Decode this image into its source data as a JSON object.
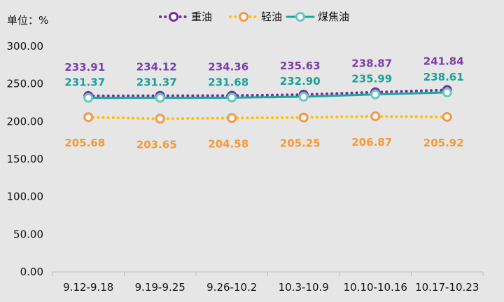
{
  "chart_data": {
    "type": "line",
    "unit_label": "单位：%",
    "categories": [
      "9.12-9.18",
      "9.19-9.25",
      "9.26-10.2",
      "10.3-10.9",
      "10.10-10.16",
      "10.17-10.23"
    ],
    "ylim": [
      0,
      300
    ],
    "yticks": [
      "0.00",
      "50.00",
      "100.00",
      "150.00",
      "200.00",
      "250.00",
      "300.00"
    ],
    "grid": false,
    "legend_position": "top",
    "series": [
      {
        "name": "重油",
        "values": [
          233.91,
          234.12,
          234.36,
          235.63,
          238.87,
          241.84
        ],
        "labels": [
          "233.91",
          "234.12",
          "234.36",
          "235.63",
          "238.87",
          "241.84"
        ],
        "color": "#7030a0",
        "label_color": "#7b3fa8",
        "line_style": "dotted",
        "label_position": "above"
      },
      {
        "name": "轻油",
        "values": [
          205.68,
          203.65,
          204.58,
          205.25,
          206.87,
          205.92
        ],
        "labels": [
          "205.68",
          "203.65",
          "204.58",
          "205.25",
          "206.87",
          "205.92"
        ],
        "color": "#ffc000",
        "marker_color": "#f79646",
        "label_color": "#f79a34",
        "line_style": "dotted",
        "label_position": "below"
      },
      {
        "name": "煤焦油",
        "values": [
          231.37,
          231.37,
          231.68,
          232.9,
          235.99,
          238.61
        ],
        "labels": [
          "231.37",
          "231.37",
          "231.68",
          "232.90",
          "235.99",
          "238.61"
        ],
        "color": "#1aa89e",
        "marker_color": "#66c8c0",
        "label_color": "#16a297",
        "line_style": "solid",
        "label_position": "above"
      }
    ]
  }
}
